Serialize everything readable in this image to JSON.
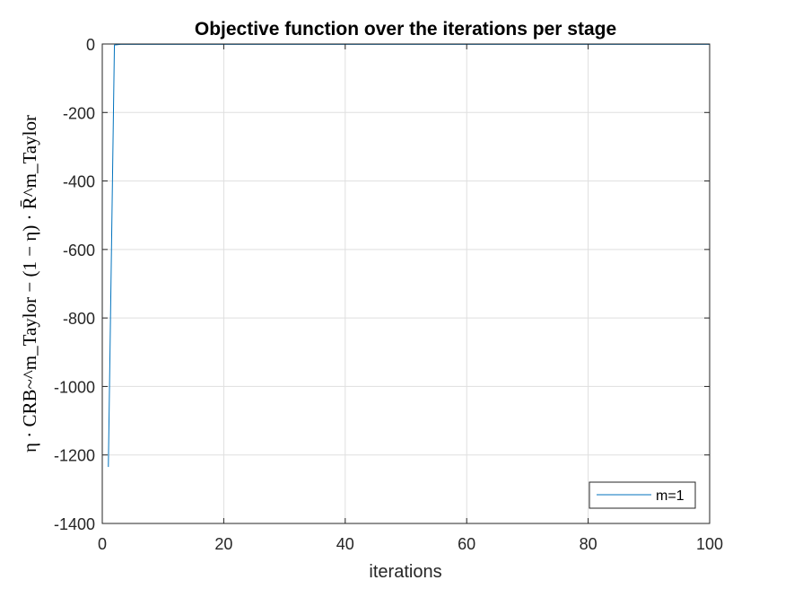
{
  "chart_data": {
    "type": "line",
    "title": "Objective function over the iterations per stage",
    "xlabel": "iterations",
    "ylabel": "η · CRB~^m_Taylor − (1 − η) · R̄^m_Taylor",
    "xlim": [
      0,
      100
    ],
    "ylim": [
      -1400,
      0
    ],
    "xticks": [
      0,
      20,
      40,
      60,
      80,
      100
    ],
    "yticks": [
      0,
      -200,
      -400,
      -600,
      -800,
      -1000,
      -1200,
      -1400
    ],
    "grid": true,
    "legend_position": "bottom-right",
    "series": [
      {
        "name": "m=1",
        "color": "#0072BD",
        "x": [
          1,
          2,
          3,
          4,
          5,
          6,
          7,
          8,
          9,
          10,
          15,
          20,
          30,
          40,
          50,
          60,
          70,
          80,
          90,
          100
        ],
        "y": [
          -1235,
          -3,
          -1,
          -1,
          -1,
          -1,
          -1,
          -1,
          -1,
          -1,
          -1,
          -1,
          -1,
          -1,
          -1,
          -1,
          -1,
          -1,
          -1,
          -1
        ]
      }
    ]
  }
}
